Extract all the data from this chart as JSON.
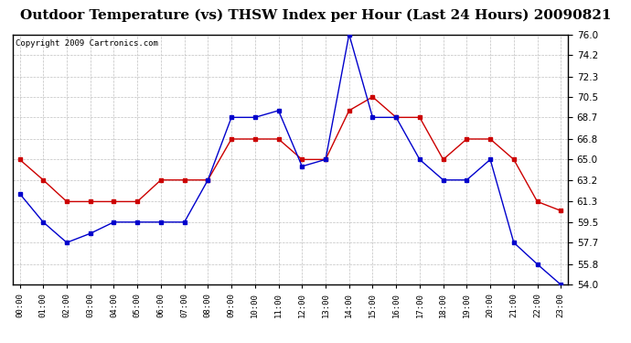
{
  "title": "Outdoor Temperature (vs) THSW Index per Hour (Last 24 Hours) 20090821",
  "copyright": "Copyright 2009 Cartronics.com",
  "hours": [
    "00:00",
    "01:00",
    "02:00",
    "03:00",
    "04:00",
    "05:00",
    "06:00",
    "07:00",
    "08:00",
    "09:00",
    "10:00",
    "11:00",
    "12:00",
    "13:00",
    "14:00",
    "15:00",
    "16:00",
    "17:00",
    "18:00",
    "19:00",
    "20:00",
    "21:00",
    "22:00",
    "23:00"
  ],
  "temp": [
    65.0,
    63.2,
    61.3,
    61.3,
    61.3,
    61.3,
    63.2,
    63.2,
    63.2,
    66.8,
    66.8,
    66.8,
    65.0,
    65.0,
    69.3,
    70.5,
    68.7,
    68.7,
    65.0,
    66.8,
    66.8,
    65.0,
    61.3,
    60.5
  ],
  "thsw": [
    62.0,
    59.5,
    57.7,
    58.5,
    59.5,
    59.5,
    59.5,
    59.5,
    63.2,
    68.7,
    68.7,
    69.3,
    64.4,
    65.0,
    76.0,
    68.7,
    68.7,
    65.0,
    63.2,
    63.2,
    65.0,
    57.7,
    55.8,
    54.0
  ],
  "temp_color": "#cc0000",
  "thsw_color": "#0000cc",
  "ylim_min": 54.0,
  "ylim_max": 76.0,
  "yticks": [
    54.0,
    55.8,
    57.7,
    59.5,
    61.3,
    63.2,
    65.0,
    66.8,
    68.7,
    70.5,
    72.3,
    74.2,
    76.0
  ],
  "bg_color": "#ffffff",
  "plot_bg_color": "#ffffff",
  "grid_color": "#b0b0b0",
  "title_fontsize": 11,
  "copyright_fontsize": 6.5
}
